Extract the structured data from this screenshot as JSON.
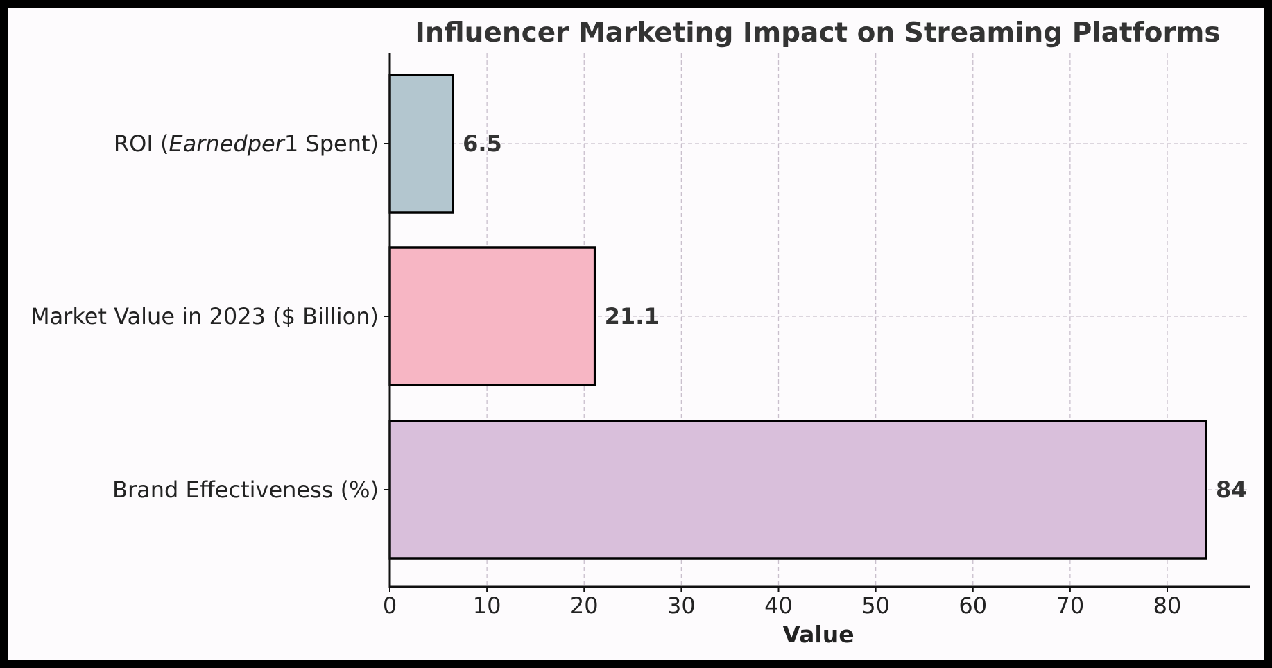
{
  "chart_data": {
    "type": "bar",
    "orientation": "horizontal",
    "title": "Influencer Marketing Impact on Streaming Platforms",
    "xlabel": "Value",
    "ylabel": "",
    "xlim": [
      0,
      88
    ],
    "xticks": [
      0,
      10,
      20,
      30,
      40,
      50,
      60,
      70,
      80
    ],
    "grid": true,
    "categories": [
      {
        "pre": "ROI (",
        "italic": "Earnedper",
        "post": "1 Spent)"
      },
      {
        "pre": "Market Value in 2023 ($ Billion)",
        "italic": "",
        "post": ""
      },
      {
        "pre": "Brand Effectiveness (%)",
        "italic": "",
        "post": ""
      }
    ],
    "values": [
      6.5,
      21.1,
      84
    ],
    "value_labels": [
      "6.5",
      "21.1",
      "84"
    ],
    "colors": [
      "#b3c6cf",
      "#f7b6c4",
      "#d9bfdb"
    ]
  }
}
